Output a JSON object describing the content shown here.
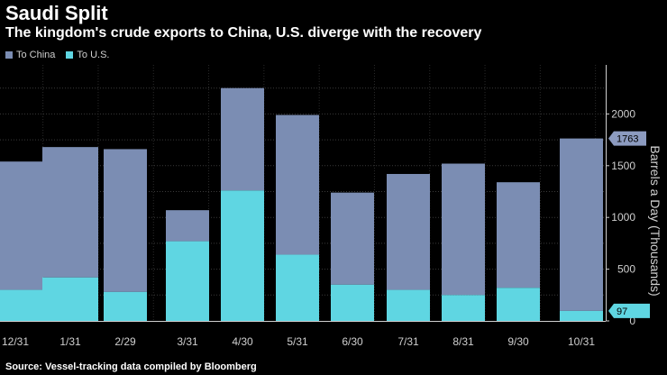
{
  "chart_data": {
    "type": "bar",
    "stacked": true,
    "title": "Saudi Split",
    "subtitle": "The kingdom's crude exports to China, U.S. diverge with the recovery",
    "categories": [
      "12/31",
      "1/31",
      "2/29",
      "3/31",
      "4/30",
      "5/31",
      "6/30",
      "7/31",
      "8/31",
      "9/30",
      "10/31"
    ],
    "series": [
      {
        "name": "To U.S.",
        "color": "#5fd6e2",
        "values": [
          300,
          420,
          280,
          770,
          1260,
          640,
          350,
          300,
          250,
          320,
          97
        ]
      },
      {
        "name": "To China",
        "color": "#7b8db3",
        "values": [
          1240,
          1260,
          1380,
          300,
          990,
          1350,
          890,
          1120,
          1270,
          1020,
          1666
        ]
      }
    ],
    "ylabel": "Barrels a Day (Thousands)",
    "ylim": [
      0,
      2400
    ],
    "yticks": [
      0,
      500,
      1000,
      1500,
      2000
    ],
    "grid": true,
    "legend": "top-left",
    "annotations": [
      {
        "label": "1763",
        "series": "total",
        "value": 1763
      },
      {
        "label": "97",
        "series": "To U.S.",
        "value": 97
      }
    ],
    "source": "Source: Vessel-tracking data compiled by Bloomberg"
  }
}
